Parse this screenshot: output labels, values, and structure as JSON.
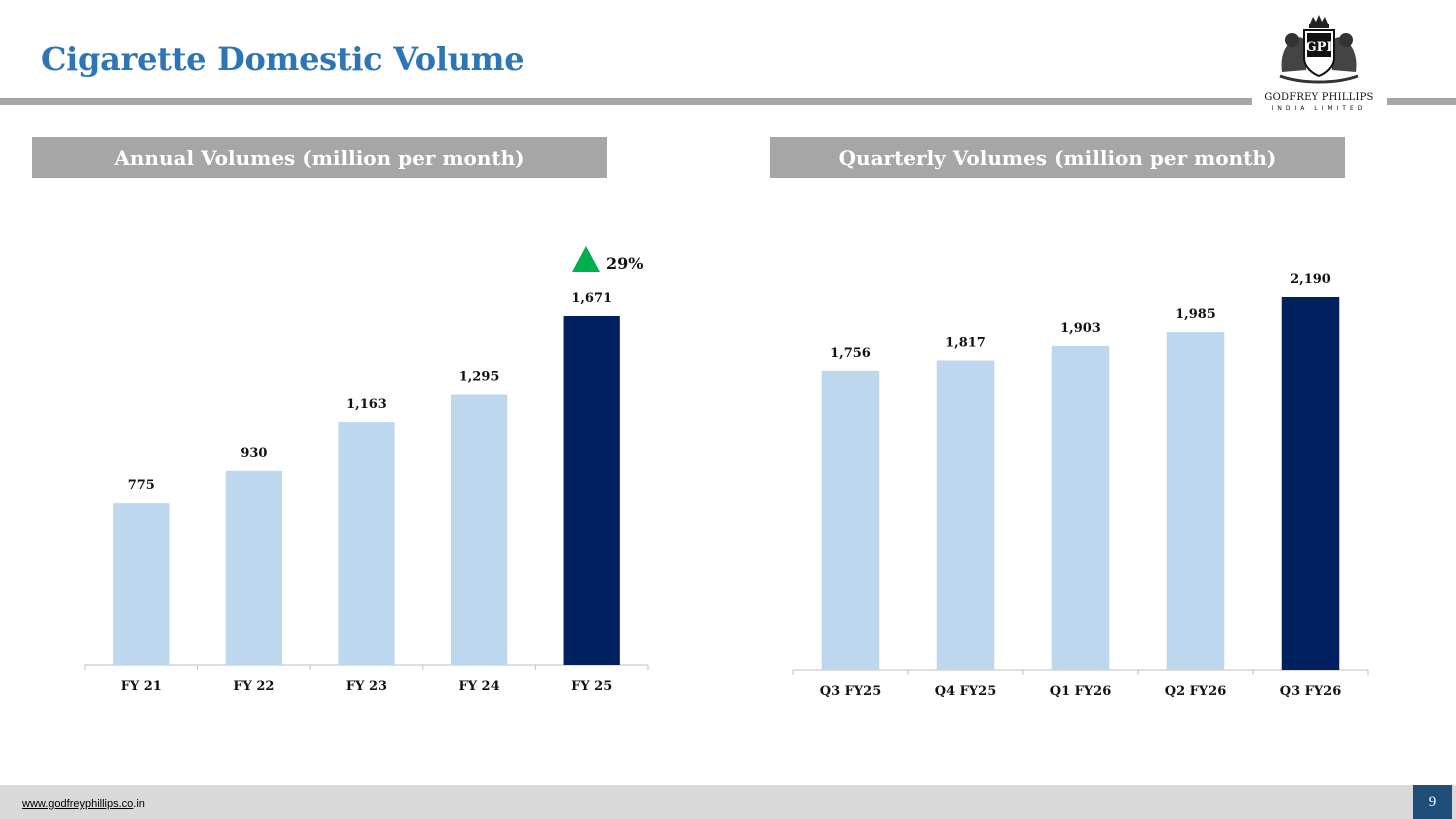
{
  "page": {
    "title": "Cigarette Domestic Volume"
  },
  "logo": {
    "mark": "GPI",
    "name": "GODFREY PHILLIPS",
    "subtitle": "INDIA LIMITED"
  },
  "colors": {
    "title": "#2E75B6",
    "bar_light": "#BDD7EE",
    "bar_highlight": "#002060",
    "growth_arrow": "#00B050",
    "header_bg": "#A6A6A6",
    "page_num_bg": "#1F4E79"
  },
  "annual": {
    "header": "Annual Volumes (million per month)",
    "growth_label": "29%"
  },
  "quarterly": {
    "header": "Quarterly Volumes (million per month)"
  },
  "chart_data": [
    {
      "type": "bar",
      "title": "Annual Volumes (million per month)",
      "categories": [
        "FY 21",
        "FY 22",
        "FY 23",
        "FY 24",
        "FY 25"
      ],
      "values": [
        775,
        930,
        1163,
        1295,
        1671
      ],
      "value_labels": [
        "775",
        "930",
        "1,163",
        "1,295",
        "1,671"
      ],
      "highlight_index": 4,
      "annotation": "29%",
      "xlabel": "",
      "ylabel": "",
      "ylim": [
        0,
        1671
      ]
    },
    {
      "type": "bar",
      "title": "Quarterly Volumes (million per month)",
      "categories": [
        "Q3 FY25",
        "Q4 FY25",
        "Q1 FY26",
        "Q2 FY26",
        "Q3 FY26"
      ],
      "values": [
        1756,
        1817,
        1903,
        1985,
        2190
      ],
      "value_labels": [
        "1,756",
        "1,817",
        "1,903",
        "1,985",
        "2,190"
      ],
      "highlight_index": 4,
      "xlabel": "",
      "ylabel": "",
      "ylim": [
        0,
        2190
      ]
    }
  ],
  "footer": {
    "url_linked": "www.godfreyphillips.co",
    "url_tail": ".in",
    "page_number": "9"
  }
}
